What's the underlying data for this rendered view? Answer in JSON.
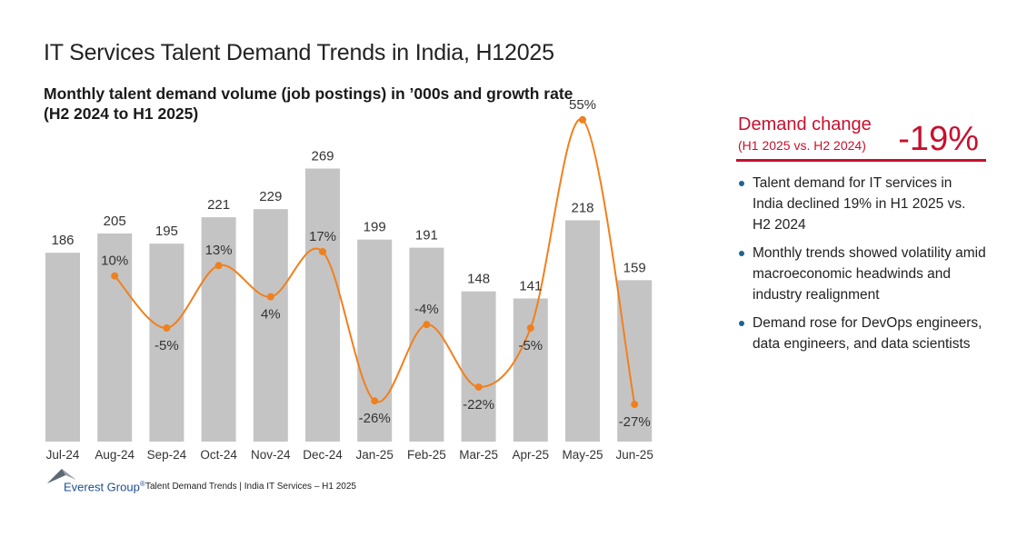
{
  "page": {
    "title": "IT Services Talent Demand Trends in India, H12025"
  },
  "chart_data": {
    "type": "bar",
    "title": "Monthly talent demand volume (job postings) in ’000s and growth rate (H2 2024 to H1 2025)",
    "title_lines": [
      "Monthly talent demand volume (job postings) in ’000s and growth rate",
      "(H2 2024 to H1 2025)"
    ],
    "xlabel": "",
    "ylabel": "",
    "ylim": [
      0,
      290
    ],
    "categories": [
      "Jul-24",
      "Aug-24",
      "Sep-24",
      "Oct-24",
      "Nov-24",
      "Dec-24",
      "Jan-25",
      "Feb-25",
      "Mar-25",
      "Apr-25",
      "May-25",
      "Jun-25"
    ],
    "series": [
      {
        "name": "Talent demand volume ('000s)",
        "type": "bar",
        "color": "#c4c4c4",
        "values": [
          186,
          205,
          195,
          221,
          229,
          269,
          199,
          191,
          148,
          141,
          218,
          159
        ],
        "labels": [
          "186",
          "205",
          "195",
          "221",
          "229",
          "269",
          "199",
          "191",
          "148",
          "141",
          "218",
          "159"
        ]
      },
      {
        "name": "Growth rate (%)",
        "type": "line",
        "color": "#f0801e",
        "values": [
          null,
          10,
          -5,
          13,
          4,
          17,
          -26,
          -4,
          -22,
          -5,
          55,
          -27
        ],
        "labels": [
          "",
          "10%",
          "-5%",
          "13%",
          "4%",
          "17%",
          "-26%",
          "-4%",
          "-22%",
          "-5%",
          "55%",
          "-27%"
        ],
        "label_position": [
          "",
          "above",
          "below",
          "above",
          "below",
          "above",
          "below",
          "above",
          "below",
          "below",
          "above",
          "below"
        ]
      }
    ],
    "grid": false,
    "legend": "none"
  },
  "side": {
    "demand_title": "Demand change",
    "demand_period": "(H1 2025 vs. H2 2024)",
    "demand_value": "-19%",
    "accent_color": "#c8102e",
    "bullets": [
      "Talent demand for IT services in India declined 19% in H1 2025 vs. H2 2024",
      "Monthly trends showed volatility amid macroeconomic headwinds and industry realignment",
      "Demand rose for DevOps engineers, data engineers, and data scientists"
    ]
  },
  "footer": {
    "logo_text": "Everest Group",
    "logo_reg": "®",
    "caption": "Talent Demand Trends | India IT Services – H1 2025"
  }
}
